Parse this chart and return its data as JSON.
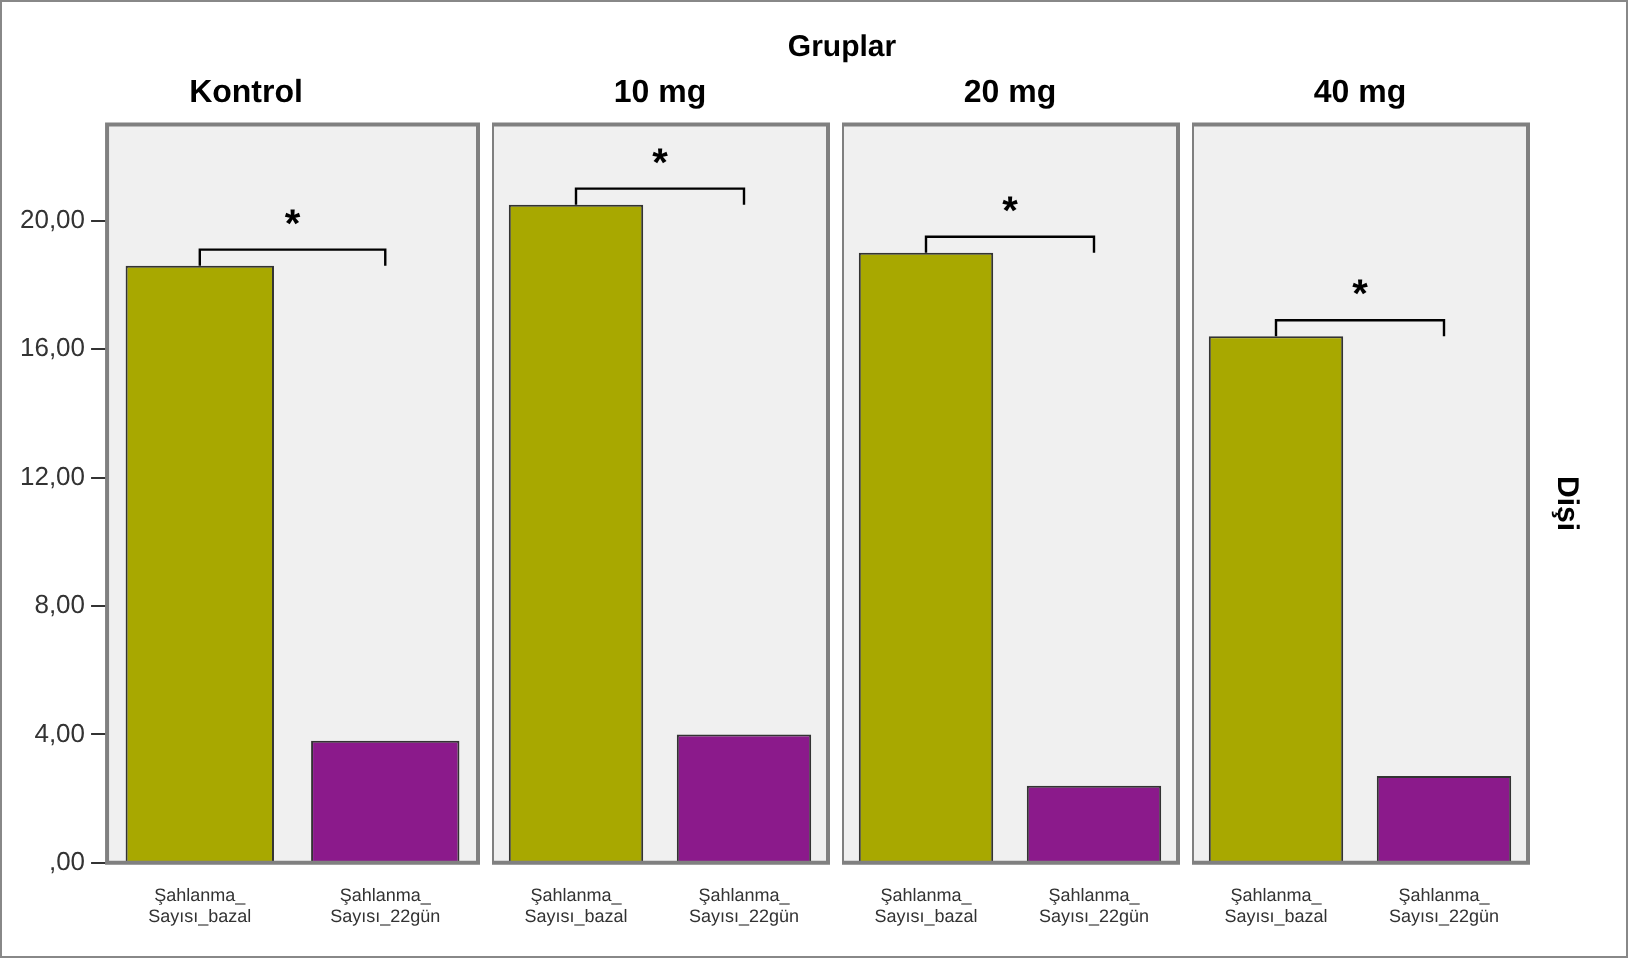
{
  "chart_data": [
    {
      "type": "bar",
      "title": "Kontrol",
      "annotations": [
        "Gruplar",
        "*"
      ],
      "categories": [
        "Şahlanma_Sayısı_bazal",
        "Şahlanma_Sayısı_22gün"
      ],
      "values": [
        18.6,
        3.8
      ],
      "colors": [
        "#a8a800",
        "#8b1a8b"
      ],
      "ylim": [
        0,
        23
      ],
      "yticks": [
        {
          "value": 0,
          "label": ",00"
        },
        {
          "value": 4,
          "label": "4,00"
        },
        {
          "value": 8,
          "label": "8,00"
        },
        {
          "value": 12,
          "label": "12,00"
        },
        {
          "value": 16,
          "label": "16,00"
        },
        {
          "value": 20,
          "label": "20,00"
        }
      ],
      "grid": false,
      "legend": false
    },
    {
      "type": "bar",
      "title": "10 mg",
      "annotations": [
        "*"
      ],
      "categories": [
        "Şahlanma_Sayısı_bazal",
        "Şahlanma_Sayısı_22gün"
      ],
      "values": [
        20.5,
        4.0
      ],
      "colors": [
        "#a8a800",
        "#8b1a8b"
      ],
      "ylim": [
        0,
        23
      ],
      "tick_labels": "x",
      "grid": false,
      "legend": false
    },
    {
      "type": "bar",
      "title": "20 mg",
      "annotations": [
        "*"
      ],
      "categories": [
        "Şahlanma_Sayısı_bazal",
        "Şahlanma_Sayısı_22gün"
      ],
      "values": [
        19.0,
        2.4
      ],
      "colors": [
        "#a8a800",
        "#8b1a8b"
      ],
      "ylim": [
        0,
        23
      ],
      "tick_labels": "x",
      "grid": false,
      "legend": false
    },
    {
      "type": "bar",
      "title": "40 mg",
      "annotations": [
        "*"
      ],
      "y2label": "Dişi",
      "categories": [
        "Şahlanma_Sayısı_bazal",
        "Şahlanma_Sayısı_22gün"
      ],
      "values": [
        16.4,
        2.7
      ],
      "colors": [
        "#a8a800",
        "#8b1a8b"
      ],
      "ylim": [
        0,
        23
      ],
      "tick_labels": "x",
      "grid": false,
      "legend": false
    }
  ]
}
